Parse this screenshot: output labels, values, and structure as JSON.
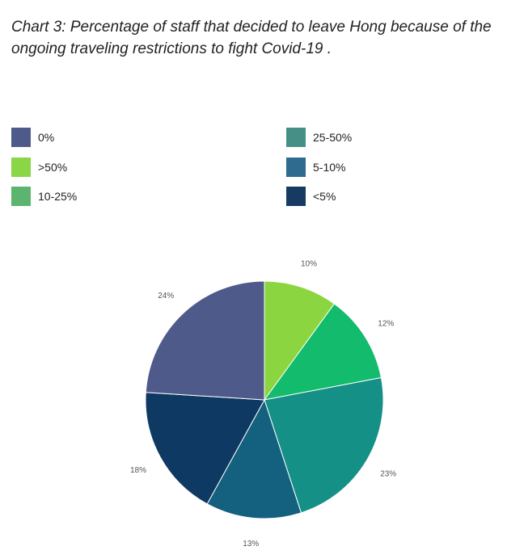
{
  "page": {
    "title": "Chart 3: Percentage of staff that decided to leave Hong because of the ongoing traveling restrictions to fight Covid-19 ."
  },
  "legend": [
    {
      "label": "0%",
      "color": "#4e5a8a"
    },
    {
      "label": "25-50%",
      "color": "#468f87"
    },
    {
      "label": ">50%",
      "color": "#8bd646"
    },
    {
      "label": "5-10%",
      "color": "#2e6b8e"
    },
    {
      "label": "10-25%",
      "color": "#5cb56e"
    },
    {
      "label": "<5%",
      "color": "#173a63"
    }
  ],
  "chart_data": {
    "type": "pie",
    "title": "Chart 3: Percentage of staff that decided to leave Hong because of the ongoing traveling restrictions to fight Covid-19 .",
    "legend_position": "top",
    "slices": [
      {
        "label": "10%",
        "value": 10,
        "color": "#8bd640"
      },
      {
        "label": "12%",
        "value": 12,
        "color": "#13bb6c"
      },
      {
        "label": "23%",
        "value": 23,
        "color": "#149086"
      },
      {
        "label": "13%",
        "value": 13,
        "color": "#14617f"
      },
      {
        "label": "18%",
        "value": 18,
        "color": "#0e3962"
      },
      {
        "label": "24%",
        "value": 24,
        "color": "#4e5a8a"
      }
    ]
  }
}
